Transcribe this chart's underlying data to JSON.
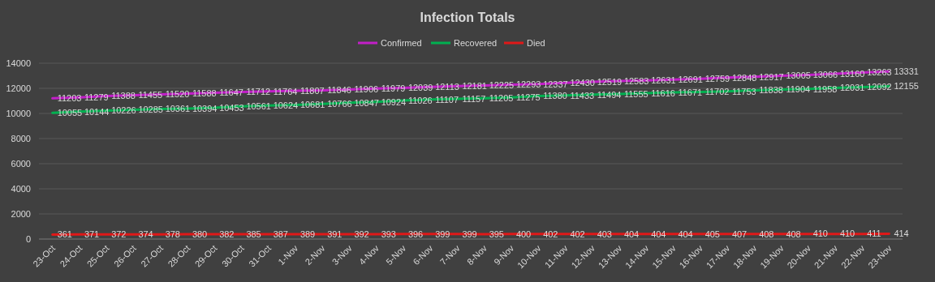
{
  "chart_data": {
    "type": "line",
    "title": "Infection Totals",
    "categories": [
      "23-Oct",
      "24-Oct",
      "25-Oct",
      "26-Oct",
      "27-Oct",
      "28-Oct",
      "29-Oct",
      "30-Oct",
      "31-Oct",
      "1-Nov",
      "2-Nov",
      "3-Nov",
      "4-Nov",
      "5-Nov",
      "6-Nov",
      "7-Nov",
      "8-Nov",
      "9-Nov",
      "10-Nov",
      "11-Nov",
      "12-Nov",
      "13-Nov",
      "14-Nov",
      "15-Nov",
      "16-Nov",
      "17-Nov",
      "18-Nov",
      "19-Nov",
      "20-Nov",
      "21-Nov",
      "22-Nov",
      "23-Nov"
    ],
    "series": [
      {
        "name": "Confirmed",
        "color": "#c21fc8",
        "values": [
          11203,
          11279,
          11388,
          11455,
          11520,
          11588,
          11647,
          11712,
          11764,
          11807,
          11846,
          11906,
          11979,
          12039,
          12113,
          12181,
          12225,
          12293,
          12337,
          12430,
          12519,
          12583,
          12631,
          12691,
          12759,
          12848,
          12917,
          13005,
          13066,
          13160,
          13263,
          13331
        ]
      },
      {
        "name": "Recovered",
        "color": "#00b050",
        "values": [
          10055,
          10144,
          10226,
          10285,
          10361,
          10394,
          10453,
          10561,
          10624,
          10681,
          10766,
          10847,
          10924,
          11026,
          11107,
          11157,
          11205,
          11275,
          11380,
          11433,
          11494,
          11555,
          11616,
          11671,
          11702,
          11753,
          11838,
          11904,
          11958,
          12031,
          12092,
          12155
        ]
      },
      {
        "name": "Died",
        "color": "#e01818",
        "values": [
          361,
          371,
          372,
          374,
          378,
          380,
          382,
          385,
          387,
          389,
          391,
          392,
          393,
          396,
          399,
          399,
          395,
          400,
          402,
          402,
          403,
          404,
          404,
          404,
          405,
          407,
          408,
          408,
          410,
          410,
          411,
          414
        ]
      }
    ],
    "ylim": [
      0,
      14000
    ],
    "yticks": [
      0,
      2000,
      4000,
      6000,
      8000,
      10000,
      12000,
      14000
    ],
    "grid": "y",
    "legend": "top",
    "data_labels": true,
    "marker": "none",
    "line_style": "solid"
  }
}
